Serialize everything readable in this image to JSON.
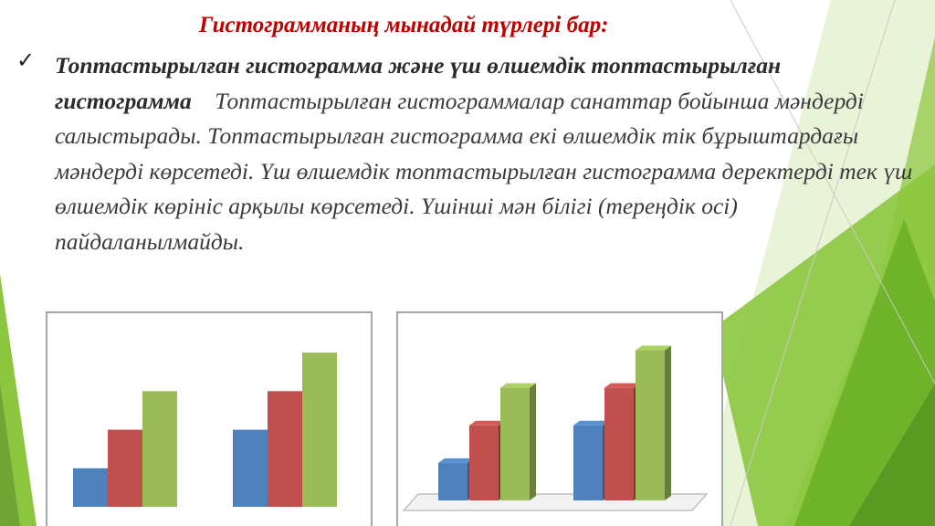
{
  "slide": {
    "heading": "Гистограмманың мынадай түрлері бар:",
    "bullet_icon": "checkmark-icon",
    "bullet_bold": "Топтастырылған гистограмма және үш өлшемдік топтастырылған гистограмма",
    "bullet_text": "Топтастырылған гистограммалар санаттар бойынша мәндерді салыстырады. Топтастырылған гистограмма екі өлшемдік тік бұрыштардағы мәндерді көрсетеді. Үш өлшемдік топтастырылған гистограмма деректерді тек үш өлшемдік көрініс арқылы көрсетеді. Үшінші мән білігі (тереңдік осі) пайдаланылмайды."
  },
  "theme": {
    "heading_color": "#c00000",
    "series_colors": [
      "#4f81bd",
      "#c0504d",
      "#9bbb59"
    ],
    "accent_green": "#8cc63f"
  },
  "chart_data": [
    {
      "type": "bar",
      "variant": "clustered-2d",
      "categories": [
        "",
        ""
      ],
      "series": [
        {
          "values": [
            1,
            2
          ]
        },
        {
          "values": [
            2,
            3
          ]
        },
        {
          "values": [
            3,
            4
          ]
        }
      ],
      "ylim": [
        0,
        4.5
      ],
      "grid": false,
      "legend": "none"
    },
    {
      "type": "bar",
      "variant": "clustered-3d",
      "categories": [
        "",
        ""
      ],
      "series": [
        {
          "values": [
            1,
            2
          ]
        },
        {
          "values": [
            2,
            3
          ]
        },
        {
          "values": [
            3,
            4
          ]
        }
      ],
      "ylim": [
        0,
        4.5
      ],
      "grid": false,
      "legend": "none"
    }
  ]
}
